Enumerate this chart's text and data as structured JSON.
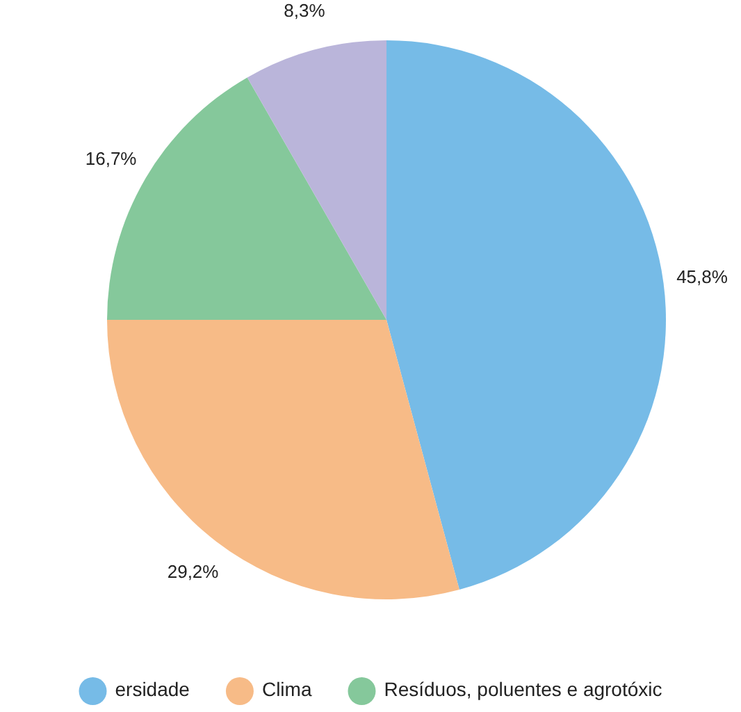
{
  "chart_data": {
    "type": "pie",
    "categories": [
      "ersidade",
      "Clima",
      "Resíduos, poluentes e agrotóxic",
      null
    ],
    "values": [
      45.8,
      29.2,
      16.7,
      8.3
    ],
    "value_labels": [
      "45,8%",
      "29,2%",
      "16,7%",
      "8,3%"
    ],
    "colors": [
      "#76bbe7",
      "#f7bb87",
      "#85c89b",
      "#bab5da"
    ],
    "legend": "bottom"
  }
}
